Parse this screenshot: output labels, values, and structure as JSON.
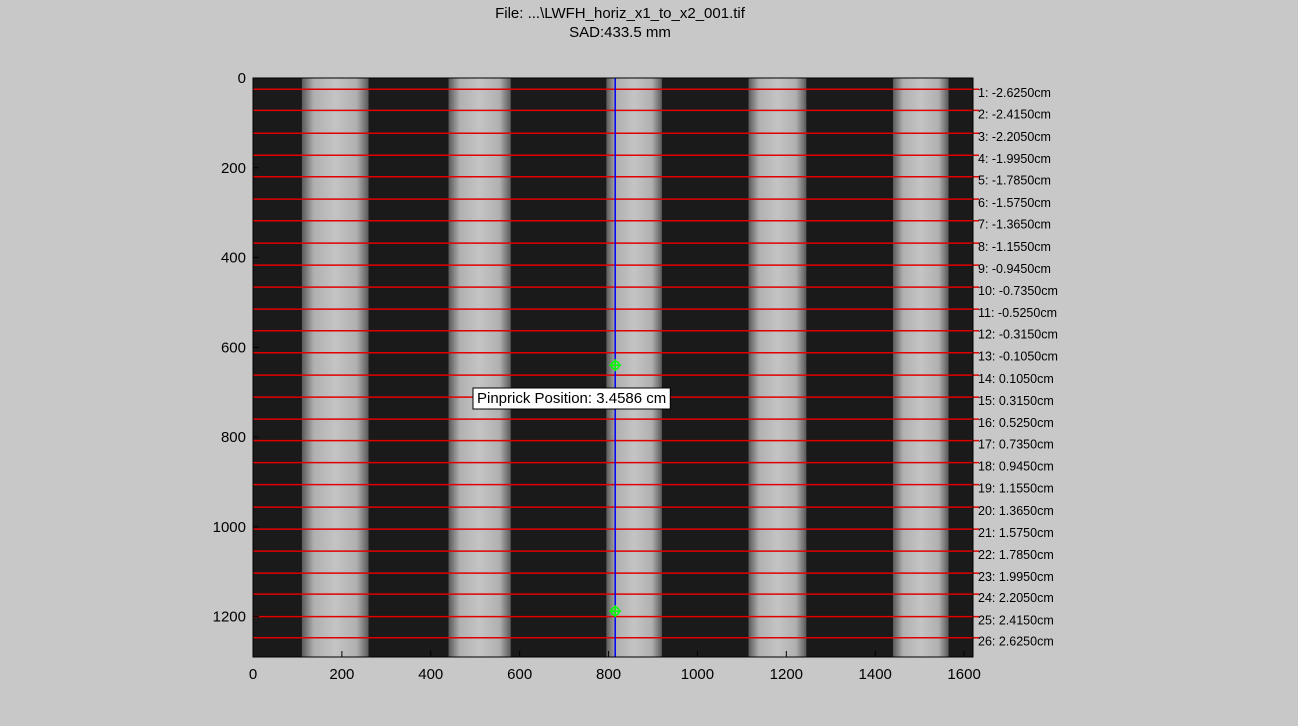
{
  "figure": {
    "title_line1": "File: ...\\LWFH_horiz_x1_to_x2_001.tif",
    "title_line2": "SAD:433.5 mm"
  },
  "colors": {
    "background": "#c8c8c8",
    "profile_line": "#e00000",
    "pinprick_line": "#0000ff",
    "marker": "#00ff00"
  },
  "axes": {
    "x_ticks": [
      "0",
      "200",
      "400",
      "600",
      "800",
      "1000",
      "1200",
      "1400",
      "1600"
    ],
    "y_ticks": [
      "0",
      "200",
      "400",
      "600",
      "800",
      "1000",
      "1200"
    ],
    "x_range": [
      0,
      1620
    ],
    "y_range": [
      0,
      1290
    ]
  },
  "image": {
    "dark_bands_x": [
      [
        0,
        110
      ],
      [
        260,
        440
      ],
      [
        580,
        795
      ],
      [
        920,
        1115
      ],
      [
        1245,
        1440
      ],
      [
        1565,
        1620
      ]
    ],
    "light_bands_x": [
      [
        110,
        260
      ],
      [
        440,
        580
      ],
      [
        795,
        920
      ],
      [
        1115,
        1245
      ],
      [
        1440,
        1565
      ]
    ]
  },
  "profile_lines": [
    {
      "label": "1: -2.6250cm",
      "y": 25
    },
    {
      "label": "2: -2.4150cm",
      "y": 72
    },
    {
      "label": "3: -2.2050cm",
      "y": 123
    },
    {
      "label": "4: -1.9950cm",
      "y": 172
    },
    {
      "label": "5: -1.7850cm",
      "y": 220
    },
    {
      "label": "6: -1.5750cm",
      "y": 270
    },
    {
      "label": "7: -1.3650cm",
      "y": 318
    },
    {
      "label": "8: -1.1550cm",
      "y": 368
    },
    {
      "label": "9: -0.9450cm",
      "y": 417
    },
    {
      "label": "10: -0.7350cm",
      "y": 466
    },
    {
      "label": "11: -0.5250cm",
      "y": 515
    },
    {
      "label": "12: -0.3150cm",
      "y": 563
    },
    {
      "label": "13: -0.1050cm",
      "y": 612
    },
    {
      "label": "14: 0.1050cm",
      "y": 662
    },
    {
      "label": "15: 0.3150cm",
      "y": 711
    },
    {
      "label": "16: 0.5250cm",
      "y": 760
    },
    {
      "label": "17: 0.7350cm",
      "y": 808
    },
    {
      "label": "18: 0.9450cm",
      "y": 857
    },
    {
      "label": "19: 1.1550cm",
      "y": 906
    },
    {
      "label": "20: 1.3650cm",
      "y": 956
    },
    {
      "label": "21: 1.5750cm",
      "y": 1005
    },
    {
      "label": "22: 1.7850cm",
      "y": 1054
    },
    {
      "label": "23: 1.9950cm",
      "y": 1103
    },
    {
      "label": "24: 2.2050cm",
      "y": 1150
    },
    {
      "label": "25: 2.4150cm",
      "y": 1200
    },
    {
      "label": "26: 2.6250cm",
      "y": 1247
    }
  ],
  "pinprick": {
    "label": "Pinprick Position: 3.4586 cm",
    "x": 815,
    "markers": [
      {
        "x": 815,
        "y": 640
      },
      {
        "x": 815,
        "y": 1188
      }
    ]
  }
}
